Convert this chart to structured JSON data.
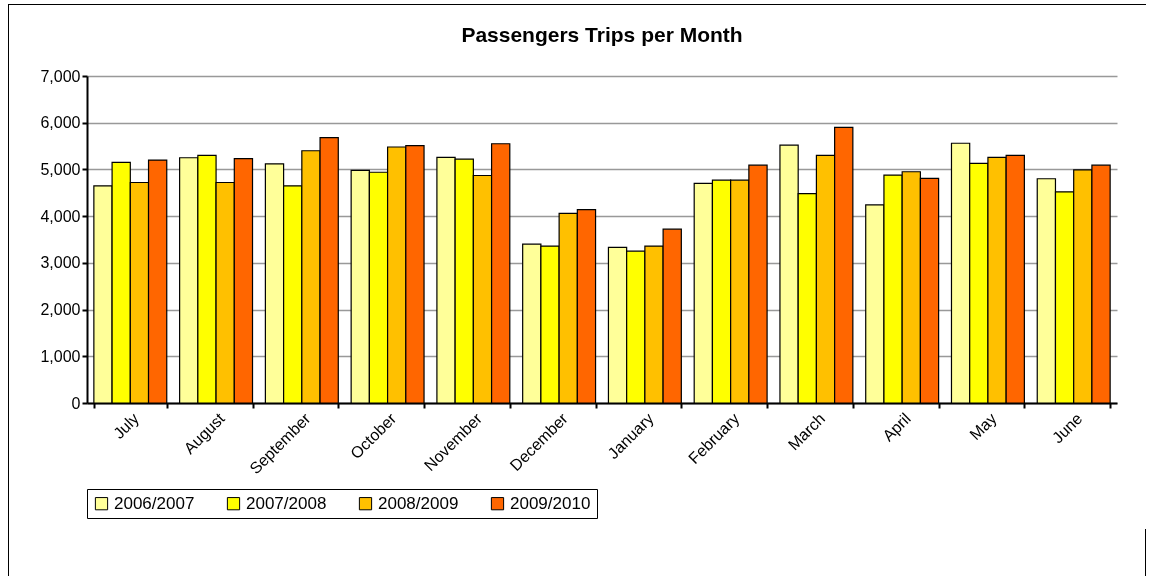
{
  "chart_data": {
    "type": "bar",
    "title": "Passengers Trips per Month",
    "categories": [
      "July",
      "August",
      "September",
      "October",
      "November",
      "December",
      "January",
      "February",
      "March",
      "April",
      "May",
      "June"
    ],
    "series": [
      {
        "name": "2006/2007",
        "color": "#ffff99",
        "values": [
          4650,
          5250,
          5120,
          4980,
          5260,
          3400,
          3330,
          4700,
          5520,
          4240,
          5560,
          4800
        ]
      },
      {
        "name": "2007/2008",
        "color": "#ffff00",
        "values": [
          5150,
          5300,
          4650,
          4940,
          5220,
          3360,
          3250,
          4770,
          4480,
          4880,
          5130,
          4520
        ]
      },
      {
        "name": "2008/2009",
        "color": "#ffc000",
        "values": [
          4720,
          4720,
          5400,
          5480,
          4870,
          4060,
          3360,
          4770,
          5300,
          4950,
          5260,
          4990
        ]
      },
      {
        "name": "2009/2010",
        "color": "#ff6600",
        "values": [
          5200,
          5230,
          5680,
          5510,
          5550,
          4140,
          3720,
          5090,
          5900,
          4810,
          5300,
          5090
        ]
      }
    ],
    "ylim": [
      0,
      7000
    ],
    "yticks": [
      {
        "value": 0,
        "label": "0"
      },
      {
        "value": 1000,
        "label": "1,000"
      },
      {
        "value": 2000,
        "label": "2,000"
      },
      {
        "value": 3000,
        "label": "3,000"
      },
      {
        "value": 4000,
        "label": "4,000"
      },
      {
        "value": 5000,
        "label": "5,000"
      },
      {
        "value": 6000,
        "label": "6,000"
      },
      {
        "value": 7000,
        "label": "7,000"
      }
    ],
    "grid": "y",
    "legend": "bottom"
  }
}
